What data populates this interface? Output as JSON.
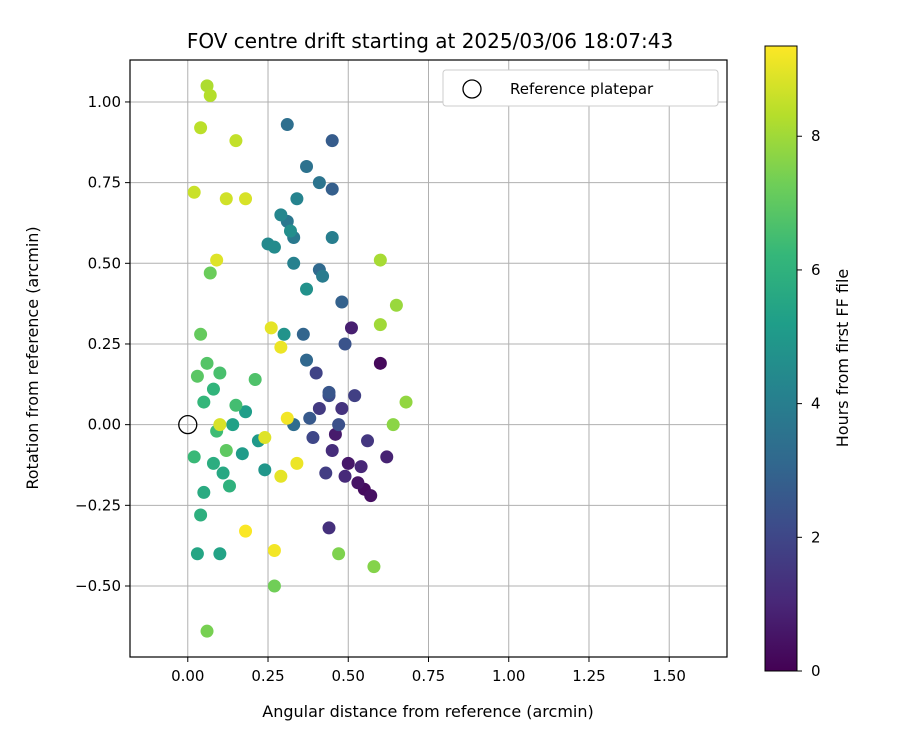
{
  "chart_data": {
    "type": "scatter",
    "title": "FOV centre drift starting at 2025/03/06 18:07:43",
    "xlabel": "Angular distance from reference (arcmin)",
    "ylabel": "Rotation from reference (arcmin)",
    "xlim": [
      -0.18,
      1.68
    ],
    "ylim": [
      -0.72,
      1.13
    ],
    "xticks": [
      "0.00",
      "0.25",
      "0.50",
      "0.75",
      "1.00",
      "1.25",
      "1.50"
    ],
    "yticks": [
      "−0.50",
      "−0.25",
      "0.00",
      "0.25",
      "0.50",
      "0.75",
      "1.00"
    ],
    "grid": true,
    "legend": {
      "position": "top-right",
      "entries": [
        "Reference platepar"
      ]
    },
    "reference_point": {
      "x": 0.0,
      "y": 0.0,
      "marker": "open-circle"
    },
    "colorbar": {
      "label": "Hours from first FF file",
      "range": [
        0,
        9.35
      ],
      "ticks": [
        "0",
        "2",
        "4",
        "6",
        "8"
      ],
      "colormap": "viridis"
    },
    "color_stops": [
      "#440154",
      "#482878",
      "#3e4989",
      "#31688e",
      "#26828e",
      "#1f9e89",
      "#35b779",
      "#6ece58",
      "#b5de2b",
      "#fde725"
    ],
    "points": [
      [
        0.6,
        0.19,
        0.2
      ],
      [
        0.55,
        -0.2,
        0.3
      ],
      [
        0.57,
        -0.22,
        0.4
      ],
      [
        0.53,
        -0.18,
        0.5
      ],
      [
        0.5,
        -0.12,
        0.6
      ],
      [
        0.46,
        -0.03,
        0.7
      ],
      [
        0.51,
        0.3,
        0.8
      ],
      [
        0.62,
        -0.1,
        0.9
      ],
      [
        0.54,
        -0.13,
        1.0
      ],
      [
        0.49,
        -0.16,
        1.1
      ],
      [
        0.45,
        -0.08,
        1.2
      ],
      [
        0.44,
        -0.32,
        1.3
      ],
      [
        0.48,
        0.05,
        1.4
      ],
      [
        0.56,
        -0.05,
        1.5
      ],
      [
        0.41,
        0.05,
        1.6
      ],
      [
        0.43,
        -0.15,
        1.7
      ],
      [
        0.52,
        0.09,
        1.8
      ],
      [
        0.4,
        0.16,
        1.9
      ],
      [
        0.39,
        -0.04,
        2.0
      ],
      [
        0.44,
        0.09,
        2.2
      ],
      [
        0.47,
        0.0,
        2.3
      ],
      [
        0.49,
        0.25,
        2.4
      ],
      [
        0.44,
        0.1,
        2.5
      ],
      [
        0.38,
        0.02,
        2.6
      ],
      [
        0.45,
        0.88,
        2.7
      ],
      [
        0.45,
        0.73,
        2.8
      ],
      [
        0.48,
        0.38,
        2.9
      ],
      [
        0.36,
        0.28,
        3.0
      ],
      [
        0.37,
        0.2,
        3.1
      ],
      [
        0.41,
        0.48,
        3.2
      ],
      [
        0.33,
        0.0,
        3.3
      ],
      [
        0.31,
        0.93,
        3.4
      ],
      [
        0.37,
        0.8,
        3.5
      ],
      [
        0.41,
        0.75,
        3.6
      ],
      [
        0.31,
        0.63,
        3.7
      ],
      [
        0.33,
        0.58,
        3.8
      ],
      [
        0.42,
        0.46,
        3.9
      ],
      [
        0.45,
        0.58,
        4.0
      ],
      [
        0.33,
        0.5,
        4.1
      ],
      [
        0.34,
        0.7,
        4.2
      ],
      [
        0.29,
        0.65,
        4.3
      ],
      [
        0.25,
        0.56,
        4.4
      ],
      [
        0.27,
        0.55,
        4.5
      ],
      [
        0.32,
        0.6,
        4.6
      ],
      [
        0.37,
        0.42,
        4.7
      ],
      [
        0.3,
        0.28,
        4.8
      ],
      [
        0.24,
        -0.14,
        4.9
      ],
      [
        0.22,
        -0.05,
        5.0
      ],
      [
        0.17,
        -0.09,
        5.1
      ],
      [
        0.18,
        0.04,
        5.2
      ],
      [
        0.14,
        0.0,
        5.3
      ],
      [
        0.1,
        -0.4,
        5.4
      ],
      [
        0.03,
        -0.4,
        5.5
      ],
      [
        0.11,
        -0.15,
        5.6
      ],
      [
        0.05,
        -0.21,
        5.7
      ],
      [
        0.08,
        -0.12,
        5.8
      ],
      [
        0.04,
        -0.28,
        5.9
      ],
      [
        0.13,
        -0.19,
        6.0
      ],
      [
        0.08,
        0.11,
        6.1
      ],
      [
        0.05,
        0.07,
        6.2
      ],
      [
        0.02,
        -0.1,
        6.3
      ],
      [
        0.09,
        -0.02,
        6.4
      ],
      [
        0.15,
        0.06,
        6.5
      ],
      [
        0.1,
        0.16,
        6.6
      ],
      [
        0.21,
        0.14,
        6.7
      ],
      [
        0.06,
        0.19,
        6.8
      ],
      [
        0.03,
        0.15,
        6.9
      ],
      [
        0.12,
        -0.08,
        7.0
      ],
      [
        0.04,
        0.28,
        7.1
      ],
      [
        0.07,
        0.47,
        7.2
      ],
      [
        0.27,
        -0.5,
        7.3
      ],
      [
        0.06,
        -0.64,
        7.4
      ],
      [
        0.47,
        -0.4,
        7.5
      ],
      [
        0.58,
        -0.44,
        7.6
      ],
      [
        0.64,
        0.0,
        7.7
      ],
      [
        0.68,
        0.07,
        7.8
      ],
      [
        0.65,
        0.37,
        7.9
      ],
      [
        0.6,
        0.31,
        8.0
      ],
      [
        0.6,
        0.51,
        8.1
      ],
      [
        0.06,
        1.05,
        8.2
      ],
      [
        0.07,
        1.02,
        8.3
      ],
      [
        0.04,
        0.92,
        8.4
      ],
      [
        0.15,
        0.88,
        8.5
      ],
      [
        0.02,
        0.72,
        8.6
      ],
      [
        0.12,
        0.7,
        8.7
      ],
      [
        0.18,
        0.7,
        8.8
      ],
      [
        0.09,
        0.51,
        8.9
      ],
      [
        0.26,
        0.3,
        9.0
      ],
      [
        0.29,
        0.24,
        9.1
      ],
      [
        0.31,
        0.02,
        9.2
      ],
      [
        0.18,
        -0.33,
        9.3
      ],
      [
        0.27,
        -0.39,
        9.2
      ],
      [
        0.34,
        -0.12,
        9.1
      ],
      [
        0.29,
        -0.16,
        9.0
      ],
      [
        0.24,
        -0.04,
        8.9
      ],
      [
        0.1,
        0.0,
        8.8
      ]
    ]
  }
}
